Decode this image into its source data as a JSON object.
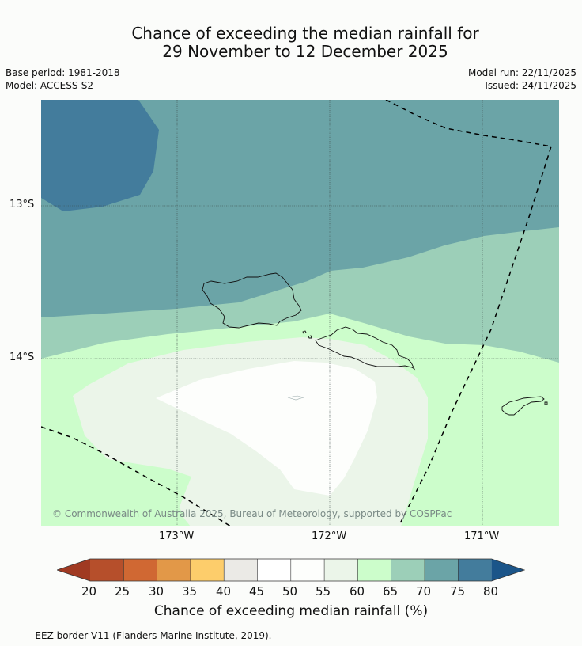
{
  "title": {
    "line1": "Chance of exceeding the median rainfall for",
    "line2": "29 November to 12 December 2025"
  },
  "meta": {
    "base_period": "Base period: 1981-2018",
    "model": "Model: ACCESS-S2",
    "model_run": "Model run: 22/11/2025",
    "issued": "Issued: 24/11/2025"
  },
  "map": {
    "lat_labels": [
      "13°S",
      "14°S"
    ],
    "lon_labels": [
      "173°W",
      "172°W",
      "171°W"
    ],
    "copyright": "© Commonwealth of Australia 2025, Bureau of Meteorology, supported by COSPPac"
  },
  "colorbar": {
    "label": "Chance of exceeding median rainfall (%)",
    "ticks": [
      "20",
      "25",
      "30",
      "35",
      "40",
      "45",
      "50",
      "55",
      "60",
      "65",
      "70",
      "75",
      "80"
    ],
    "colors": [
      "#a03a22",
      "#b64f2b",
      "#d06833",
      "#e29848",
      "#fdcd6b",
      "#ebeae6",
      "#ffffff",
      "#fdfefc",
      "#ebf5e9",
      "#ccfdcb",
      "#9ccfb8",
      "#6ba4a7",
      "#437c9c",
      "#1b5589"
    ]
  },
  "footer": "--  --  -- EEZ border V11 (Flanders Marine Institute, 2019)."
}
